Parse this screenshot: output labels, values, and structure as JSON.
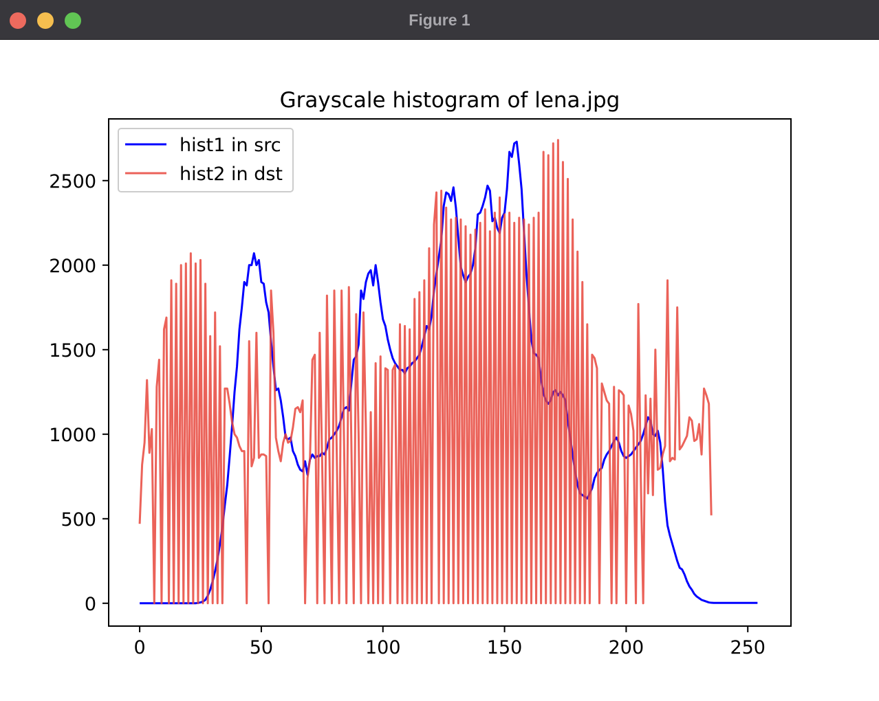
{
  "window": {
    "title": "Figure 1"
  },
  "chart_data": {
    "type": "line",
    "title": "Grayscale histogram of lena.jpg",
    "xlabel": "",
    "ylabel": "",
    "xlim": [
      -12.75,
      267.75
    ],
    "ylim": [
      -135,
      2865
    ],
    "xticks": [
      0,
      50,
      100,
      150,
      200,
      250
    ],
    "yticks": [
      0,
      500,
      1000,
      1500,
      2000,
      2500
    ],
    "legend_position": "top-left",
    "grid": false,
    "series": [
      {
        "name": "hist1 in src",
        "color": "#0000ff",
        "opacity": 1,
        "x_start": 0,
        "values": [
          0,
          0,
          0,
          0,
          0,
          0,
          0,
          0,
          0,
          0,
          0,
          0,
          0,
          0,
          0,
          0,
          0,
          0,
          0,
          0,
          0,
          0,
          0,
          0,
          2,
          5,
          10,
          20,
          45,
          80,
          130,
          190,
          260,
          350,
          450,
          580,
          700,
          870,
          1050,
          1250,
          1400,
          1620,
          1750,
          1900,
          1880,
          2000,
          2000,
          2070,
          2000,
          2030,
          1900,
          1890,
          1780,
          1720,
          1550,
          1400,
          1260,
          1270,
          1200,
          1100,
          980,
          970,
          980,
          900,
          870,
          820,
          790,
          780,
          840,
          760,
          850,
          880,
          860,
          870,
          870,
          890,
          880,
          920,
          970,
          980,
          1000,
          1020,
          1050,
          1100,
          1150,
          1160,
          1140,
          1300,
          1440,
          1460,
          1530,
          1850,
          1800,
          1900,
          1950,
          1970,
          1880,
          2000,
          1900,
          1780,
          1680,
          1640,
          1560,
          1500,
          1450,
          1420,
          1400,
          1380,
          1380,
          1360,
          1390,
          1400,
          1420,
          1430,
          1450,
          1470,
          1520,
          1580,
          1640,
          1620,
          1700,
          1850,
          1950,
          2050,
          2150,
          2350,
          2430,
          2420,
          2380,
          2460,
          2340,
          2160,
          1990,
          1940,
          1900,
          1930,
          1950,
          2000,
          2100,
          2300,
          2310,
          2350,
          2400,
          2470,
          2440,
          2260,
          2280,
          2220,
          2190,
          2280,
          2310,
          2450,
          2670,
          2640,
          2720,
          2730,
          2600,
          2450,
          2200,
          1950,
          1750,
          1560,
          1480,
          1470,
          1450,
          1330,
          1240,
          1200,
          1180,
          1200,
          1250,
          1260,
          1230,
          1250,
          1230,
          1200,
          1080,
          980,
          880,
          780,
          700,
          650,
          640,
          630,
          620,
          650,
          680,
          740,
          770,
          790,
          800,
          850,
          880,
          900,
          930,
          960,
          980,
          950,
          900,
          870,
          860,
          870,
          880,
          900,
          920,
          940,
          960,
          1000,
          1050,
          1100,
          1080,
          1000,
          990,
          1020,
          950,
          800,
          600,
          460,
          400,
          350,
          300,
          250,
          210,
          200,
          170,
          130,
          100,
          80,
          55,
          40,
          30,
          20,
          15,
          10,
          5,
          3,
          2,
          2,
          2,
          2,
          2,
          2,
          2,
          2,
          2,
          2,
          2,
          2,
          2,
          2,
          2,
          2,
          2,
          2,
          2
        ]
      },
      {
        "name": "hist2 in dst",
        "color": "#e8463c",
        "opacity": 0.85,
        "x_start": 0,
        "values": [
          470,
          820,
          950,
          1320,
          890,
          1030,
          0,
          1280,
          1440,
          0,
          1620,
          1690,
          0,
          1910,
          0,
          1890,
          0,
          2000,
          0,
          2010,
          0,
          2070,
          0,
          2010,
          0,
          2030,
          0,
          1890,
          0,
          1580,
          0,
          1720,
          0,
          1520,
          0,
          1270,
          1270,
          1180,
          1070,
          1000,
          980,
          930,
          900,
          900,
          0,
          1550,
          810,
          860,
          1600,
          860,
          880,
          880,
          870,
          0,
          1850,
          1600,
          980,
          900,
          840,
          950,
          1000,
          950,
          960,
          1040,
          1150,
          1160,
          1130,
          1200,
          0,
          740,
          850,
          1440,
          1470,
          0,
          1600,
          850,
          0,
          1820,
          880,
          0,
          1850,
          900,
          0,
          1850,
          970,
          0,
          1870,
          970,
          0,
          1710,
          1000,
          0,
          1720,
          1040,
          0,
          1130,
          0,
          1420,
          0,
          1460,
          0,
          1390,
          1380,
          0,
          1380,
          1410,
          0,
          1650,
          0,
          1640,
          0,
          1620,
          0,
          1800,
          0,
          1840,
          0,
          1910,
          0,
          2100,
          0,
          2240,
          2430,
          0,
          2440,
          0,
          2340,
          0,
          2270,
          0,
          2280,
          0,
          2270,
          0,
          2230,
          0,
          2180,
          0,
          2210,
          0,
          2250,
          0,
          2330,
          0,
          2200,
          0,
          2310,
          0,
          2400,
          0,
          2300,
          0,
          2310,
          0,
          2250,
          0,
          2280,
          0,
          2270,
          0,
          2240,
          0,
          2280,
          0,
          2310,
          0,
          2670,
          0,
          2650,
          0,
          2720,
          0,
          2740,
          0,
          2610,
          0,
          2510,
          0,
          2270,
          0,
          2080,
          0,
          1900,
          0,
          1650,
          0,
          1470,
          1450,
          1390,
          0,
          1300,
          1250,
          1200,
          1180,
          0,
          1280,
          0,
          1260,
          1250,
          1230,
          0,
          1170,
          1120,
          1020,
          0,
          1770,
          750,
          0,
          1230,
          650,
          1210,
          640,
          1500,
          790,
          800,
          880,
          930,
          1910,
          840,
          860,
          850,
          1750,
          910,
          930,
          960,
          990,
          1100,
          1080,
          960,
          970,
          1060,
          880,
          1270,
          1230,
          1180,
          520
        ]
      }
    ]
  }
}
